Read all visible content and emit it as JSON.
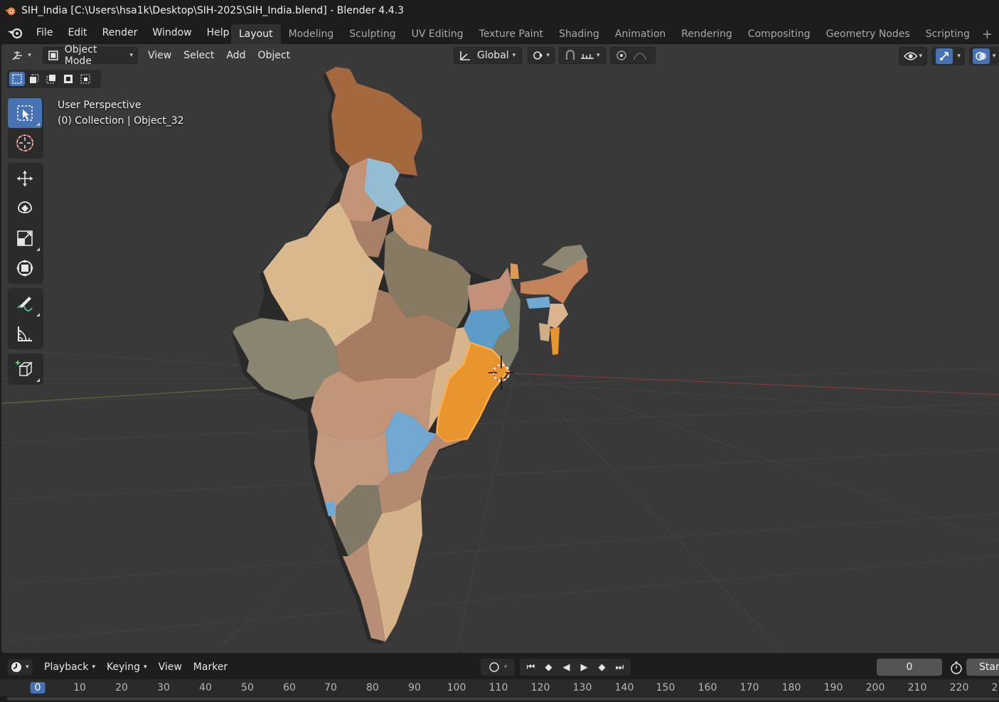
{
  "window": {
    "title": "SIH_India [C:\\Users\\hsa1k\\Desktop\\SIH-2025\\SIH_India.blend] - Blender 4.4.3"
  },
  "menubar": {
    "items": [
      "File",
      "Edit",
      "Render",
      "Window",
      "Help"
    ]
  },
  "workspaces": {
    "tabs": [
      "Layout",
      "Modeling",
      "Sculpting",
      "UV Editing",
      "Texture Paint",
      "Shading",
      "Animation",
      "Rendering",
      "Compositing",
      "Geometry Nodes",
      "Scripting"
    ],
    "active": "Layout"
  },
  "viewport": {
    "mode": "Object Mode",
    "menus": [
      "View",
      "Select",
      "Add",
      "Object"
    ],
    "transform_orientation": "Global",
    "overlay_line1": "User Perspective",
    "overlay_line2": "(0) Collection | Object_32"
  },
  "timeline": {
    "menus": [
      "Playback",
      "Keying",
      "View",
      "Marker"
    ],
    "current_frame": "0",
    "start_label": "Star",
    "ticks": [
      "0",
      "10",
      "20",
      "30",
      "40",
      "50",
      "60",
      "70",
      "80",
      "90",
      "100",
      "110",
      "120",
      "130",
      "140",
      "150",
      "160",
      "170",
      "180",
      "190",
      "200",
      "210",
      "220",
      "2"
    ]
  },
  "colors": {
    "accent": "#4772b3",
    "selected_object": "#e8952f",
    "viewport_bg": "#393939"
  }
}
